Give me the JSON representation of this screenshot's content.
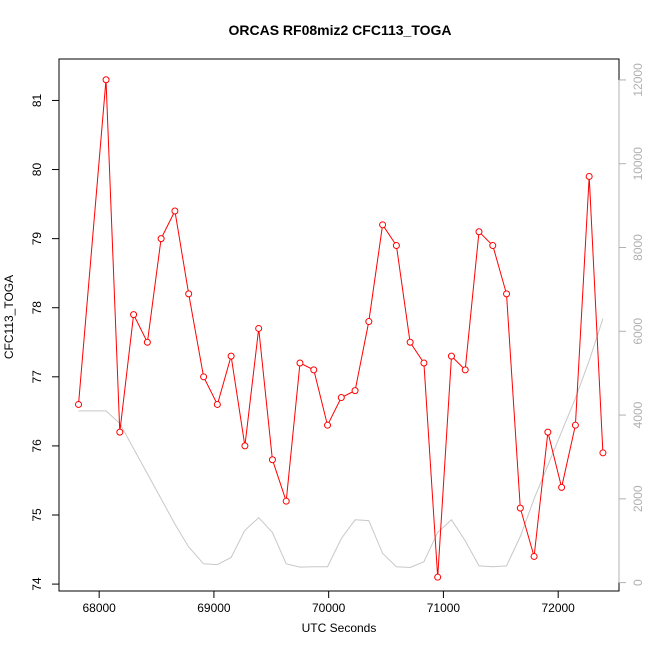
{
  "chart_data": {
    "type": "line",
    "title": "ORCAS RF08miz2 CFC113_TOGA",
    "xlabel": "UTC Seconds",
    "ylabel": "CFC113_TOGA",
    "xlim": [
      67650,
      72530
    ],
    "ylim": [
      73.9,
      81.6
    ],
    "y2lim": [
      -200,
      12500
    ],
    "x_ticks": [
      68000,
      69000,
      70000,
      71000,
      72000
    ],
    "y_ticks": [
      74,
      75,
      76,
      77,
      78,
      79,
      80,
      81
    ],
    "y2_ticks": [
      0,
      2000,
      4000,
      6000,
      8000,
      10000,
      12000
    ],
    "grid": false,
    "series": [
      {
        "axis": "left",
        "color": "#ff0000",
        "marker": "open-circle",
        "x": [
          67820,
          68060,
          68180,
          68300,
          68420,
          68540,
          68660,
          68780,
          68910,
          69030,
          69150,
          69270,
          69390,
          69510,
          69630,
          69750,
          69870,
          69990,
          70110,
          70230,
          70350,
          70470,
          70590,
          70710,
          70830,
          70950,
          71070,
          71190,
          71310,
          71430,
          71550,
          71670,
          71790,
          71910,
          72030,
          72150,
          72270,
          72390
        ],
        "values": [
          76.6,
          81.3,
          76.2,
          77.9,
          77.5,
          79.0,
          79.4,
          78.2,
          77.0,
          76.6,
          77.3,
          76.0,
          77.7,
          75.8,
          75.2,
          77.2,
          77.1,
          76.3,
          76.7,
          76.8,
          77.8,
          79.2,
          78.9,
          77.5,
          77.2,
          74.1,
          77.3,
          77.1,
          79.1,
          78.9,
          78.2,
          75.1,
          74.4,
          76.2,
          75.4,
          76.3,
          79.9,
          75.9
        ]
      },
      {
        "axis": "right",
        "color": "#c8c8c8",
        "marker": "none",
        "x": [
          67820,
          68060,
          68180,
          68300,
          68420,
          68540,
          68660,
          68780,
          68910,
          69030,
          69150,
          69270,
          69390,
          69510,
          69630,
          69750,
          69870,
          69990,
          70110,
          70230,
          70350,
          70470,
          70590,
          70710,
          70830,
          70950,
          71070,
          71190,
          71310,
          71430,
          71550,
          71670,
          71790,
          71910,
          72030,
          72150,
          72270,
          72390
        ],
        "values": [
          4100,
          4100,
          3800,
          3200,
          2600,
          2000,
          1400,
          850,
          450,
          430,
          600,
          1250,
          1550,
          1200,
          450,
          370,
          380,
          380,
          1050,
          1500,
          1480,
          700,
          380,
          360,
          500,
          1200,
          1500,
          1000,
          400,
          380,
          400,
          1100,
          2000,
          2800,
          3600,
          4400,
          5300,
          6300
        ]
      }
    ]
  }
}
